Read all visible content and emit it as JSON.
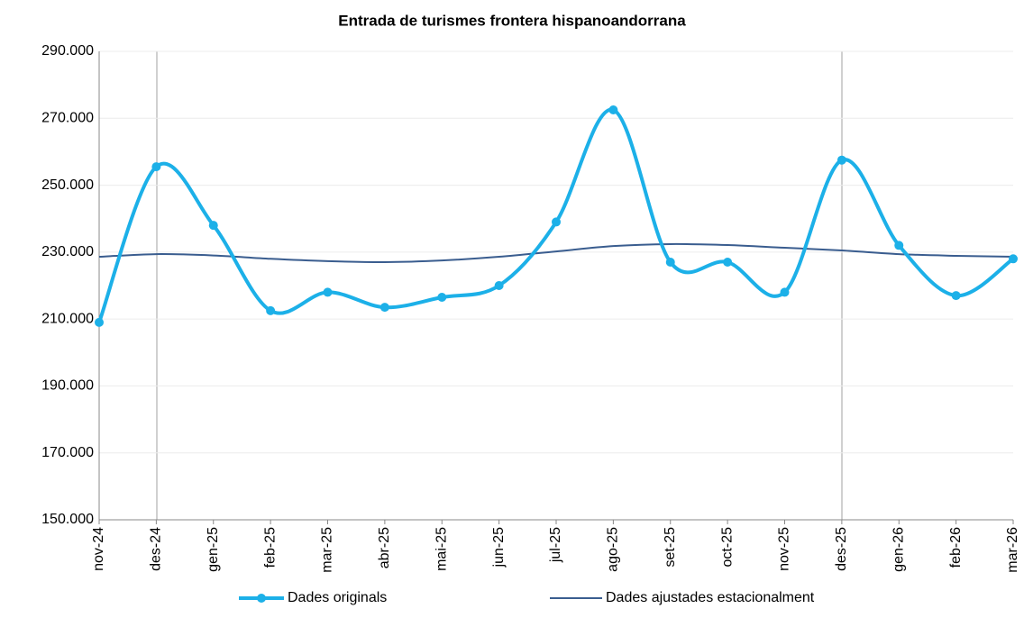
{
  "chart_data": {
    "type": "line",
    "title": "Entrada de turismes frontera hispanoandorrana",
    "categories": [
      "nov-24",
      "des-24",
      "gen-25",
      "feb-25",
      "mar-25",
      "abr-25",
      "mai-25",
      "jun-25",
      "jul-25",
      "ago-25",
      "set-25",
      "oct-25",
      "nov-25",
      "des-25",
      "gen-26",
      "feb-26",
      "mar-26"
    ],
    "series": [
      {
        "name": "Dades originals",
        "color": "#1cb0e8",
        "markers": true,
        "values": [
          209000,
          255500,
          238000,
          212500,
          218000,
          213500,
          216500,
          220000,
          239000,
          272500,
          227000,
          227000,
          218000,
          257500,
          232000,
          217000,
          228000
        ]
      },
      {
        "name": "Dades ajustades estacionalment",
        "color": "#3a5d8f",
        "markers": false,
        "values": [
          228600,
          229400,
          229000,
          228000,
          227300,
          227000,
          227500,
          228600,
          230200,
          231800,
          232400,
          232100,
          231300,
          230500,
          229400,
          228900,
          228600
        ]
      }
    ],
    "ylim": [
      150000,
      290000
    ],
    "yticks": [
      {
        "value": 150000,
        "label": "150.000"
      },
      {
        "value": 170000,
        "label": "170.000"
      },
      {
        "value": 190000,
        "label": "190.000"
      },
      {
        "value": 210000,
        "label": "210.000"
      },
      {
        "value": 230000,
        "label": "230.000"
      },
      {
        "value": 250000,
        "label": "250.000"
      },
      {
        "value": 270000,
        "label": "270.000"
      },
      {
        "value": 290000,
        "label": "290.000"
      }
    ],
    "grid": true,
    "legend": "bottom"
  }
}
